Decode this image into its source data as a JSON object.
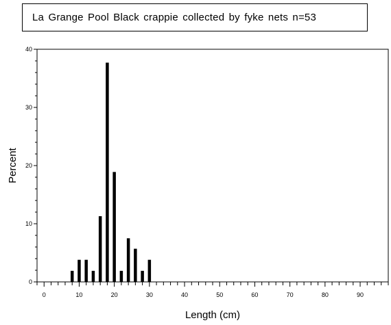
{
  "chart_data": {
    "type": "bar",
    "title": "La Grange Pool Black crappie collected by fyke nets    n=53",
    "xlabel": "Length (cm)",
    "ylabel": "Percent",
    "xlim": [
      -2,
      98
    ],
    "ylim": [
      0,
      40
    ],
    "xticks": [
      0,
      10,
      20,
      30,
      40,
      50,
      60,
      70,
      80,
      90
    ],
    "yticks": [
      0,
      10,
      20,
      30,
      40
    ],
    "x_minor_step": 2,
    "y_minor_step": 2,
    "bar_color": "#000000",
    "bars": [
      {
        "x": 8,
        "value": 1.9
      },
      {
        "x": 10,
        "value": 3.8
      },
      {
        "x": 12,
        "value": 3.8
      },
      {
        "x": 14,
        "value": 1.9
      },
      {
        "x": 16,
        "value": 11.3
      },
      {
        "x": 18,
        "value": 37.7
      },
      {
        "x": 20,
        "value": 18.9
      },
      {
        "x": 22,
        "value": 1.9
      },
      {
        "x": 24,
        "value": 7.5
      },
      {
        "x": 26,
        "value": 5.7
      },
      {
        "x": 28,
        "value": 1.9
      },
      {
        "x": 30,
        "value": 3.8
      }
    ]
  }
}
